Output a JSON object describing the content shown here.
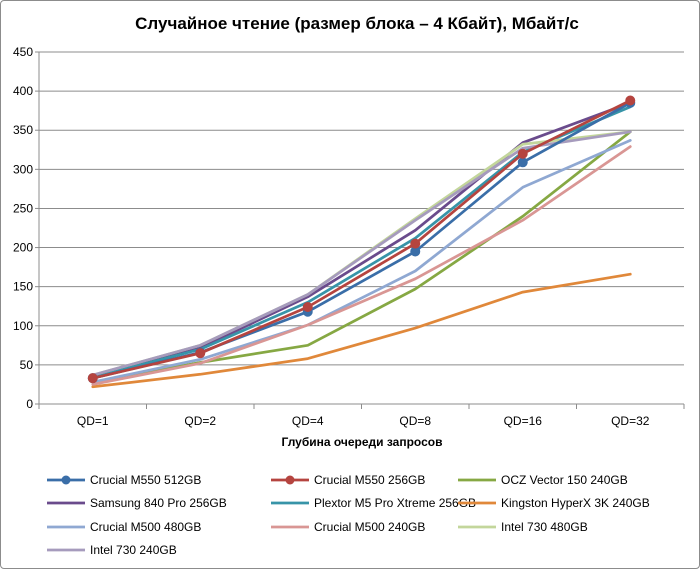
{
  "chart_data": {
    "type": "line",
    "title": "Случайное чтение (размер блока – 4 Кбайт), Мбайт/с",
    "xlabel": "Глубина очереди запросов",
    "ylabel": "",
    "categories": [
      "QD=1",
      "QD=2",
      "QD=4",
      "QD=8",
      "QD=16",
      "QD=32"
    ],
    "ylim": [
      0,
      450
    ],
    "yticks": [
      "0",
      "50",
      "100",
      "150",
      "200",
      "250",
      "300",
      "350",
      "400",
      "450"
    ],
    "grid": true,
    "legend_position": "bottom",
    "series": [
      {
        "name": "Crucial M550 512GB",
        "color": "#3a6ea8",
        "marker": true,
        "values": [
          33,
          66,
          118,
          195,
          309,
          385
        ]
      },
      {
        "name": "Crucial M550 256GB",
        "color": "#b5443f",
        "marker": true,
        "values": [
          33,
          65,
          124,
          205,
          320,
          388
        ]
      },
      {
        "name": "OCZ Vector 150 240GB",
        "color": "#86a843",
        "marker": false,
        "values": [
          28,
          53,
          75,
          147,
          240,
          348
        ]
      },
      {
        "name": "Samsung 840 Pro 256GB",
        "color": "#6a4b8c",
        "marker": false,
        "values": [
          36,
          72,
          137,
          222,
          334,
          385
        ]
      },
      {
        "name": "Plextor M5 Pro Xtreme 256GB",
        "color": "#3794a8",
        "marker": false,
        "values": [
          34,
          70,
          130,
          212,
          322,
          380
        ]
      },
      {
        "name": "Kingston HyperX 3K 240GB",
        "color": "#e0883a",
        "marker": false,
        "values": [
          22,
          38,
          58,
          97,
          143,
          166
        ]
      },
      {
        "name": "Crucial M500 480GB",
        "color": "#8fa8d2",
        "marker": false,
        "values": [
          28,
          57,
          101,
          170,
          277,
          337
        ]
      },
      {
        "name": "Crucial M500 240GB",
        "color": "#d99694",
        "marker": false,
        "values": [
          25,
          52,
          101,
          160,
          235,
          329
        ]
      },
      {
        "name": "Intel 730 480GB",
        "color": "#c3d69b",
        "marker": false,
        "values": [
          37,
          75,
          140,
          237,
          332,
          348
        ]
      },
      {
        "name": "Intel 730 240GB",
        "color": "#a69bbd",
        "marker": false,
        "values": [
          37,
          75,
          140,
          235,
          327,
          348
        ]
      }
    ]
  }
}
